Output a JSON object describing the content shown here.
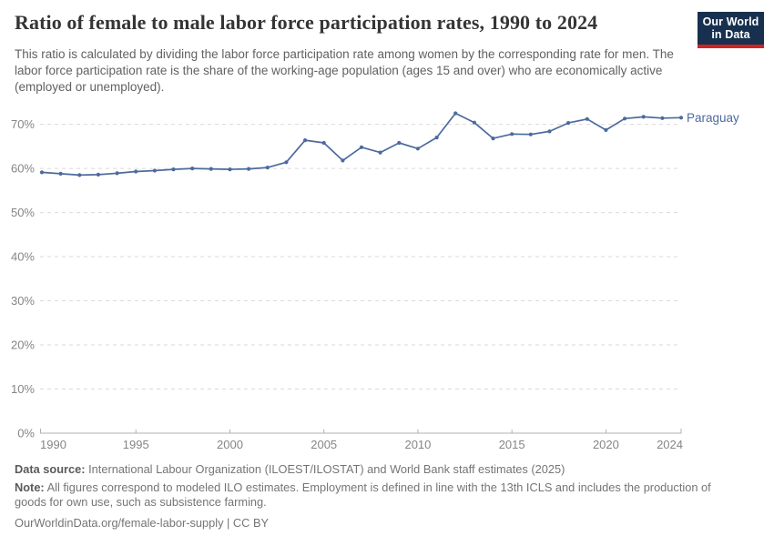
{
  "header": {
    "title": "Ratio of female to male labor force participation rates, 1990 to 2024",
    "subtitle": "This ratio is calculated by dividing the labor force participation rate among women by the corresponding rate for men. The labor force participation rate is the share of the working-age population (ages 15 and over) who are economically active (employed or unemployed)."
  },
  "logo": {
    "line1": "Our World",
    "line2": "in Data",
    "bg_color": "#18304f",
    "bar_color": "#cf2420"
  },
  "chart_data": {
    "type": "line",
    "title": "Ratio of female to male labor force participation rates, 1990 to 2024",
    "entity": "Paraguay",
    "unit": "%",
    "x": [
      1990,
      1991,
      1992,
      1993,
      1994,
      1995,
      1996,
      1997,
      1998,
      1999,
      2000,
      2001,
      2002,
      2003,
      2004,
      2005,
      2006,
      2007,
      2008,
      2009,
      2010,
      2011,
      2012,
      2013,
      2014,
      2015,
      2016,
      2017,
      2018,
      2019,
      2020,
      2021,
      2022,
      2023,
      2024
    ],
    "values": [
      59.1,
      58.8,
      58.5,
      58.6,
      58.9,
      59.3,
      59.5,
      59.8,
      60.0,
      59.9,
      59.8,
      59.9,
      60.2,
      61.4,
      66.4,
      65.8,
      61.8,
      64.8,
      63.6,
      65.8,
      64.5,
      67.0,
      72.5,
      70.4,
      66.8,
      67.8,
      67.7,
      68.4,
      70.3,
      71.2,
      68.7,
      71.3,
      71.7,
      71.4,
      71.5
    ],
    "ylim": [
      0,
      75
    ],
    "yticks": [
      0,
      10,
      20,
      30,
      40,
      50,
      60,
      70
    ],
    "xticks": [
      1990,
      1995,
      2000,
      2005,
      2010,
      2015,
      2020,
      2024
    ],
    "line_color": "#4c6a9c",
    "grid": "horizontal-dashed",
    "grid_color": "#dadada",
    "axis_color": "#b0b0b0",
    "tick_label_color": "#858585",
    "legend_position": "end-of-line"
  },
  "footer": {
    "data_source_label": "Data source:",
    "data_source": "International Labour Organization (ILOEST/ILOSTAT) and World Bank staff estimates (2025)",
    "note_label": "Note:",
    "note": "All figures correspond to modeled ILO estimates. Employment is defined in line with the 13th ICLS and includes the production of goods for own use, such as subsistence farming.",
    "link": "OurWorldinData.org/female-labor-supply | CC BY"
  }
}
